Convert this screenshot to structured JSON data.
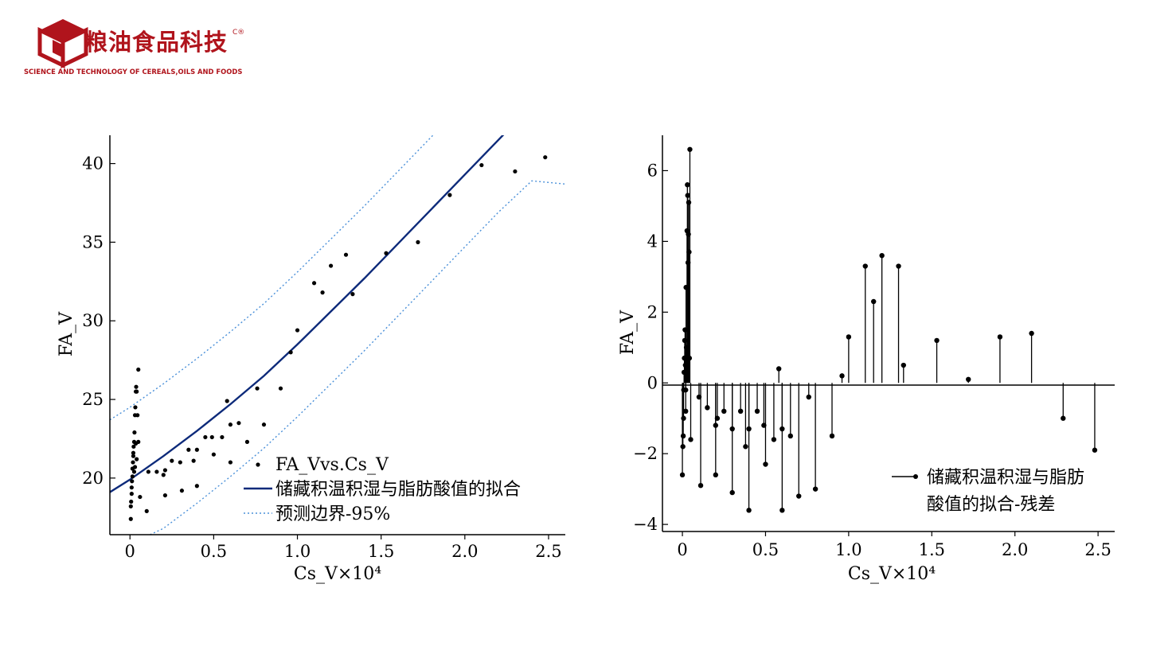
{
  "logo": {
    "title": "粮油食品科技",
    "mark": "C®",
    "subtitle": "SCIENCE AND TECHNOLOGY OF CEREALS,OILS AND FOODS",
    "colors": {
      "primary": "#b0141c"
    }
  },
  "chart_data": [
    {
      "type": "scatter",
      "title": "",
      "xlabel": "Cs_V×10⁴",
      "ylabel": "FA_V",
      "xlim": [
        -0.12,
        2.6
      ],
      "ylim": [
        16.4,
        41.8
      ],
      "xticks": [
        0,
        0.5,
        1.0,
        1.5,
        2.0,
        2.5
      ],
      "xtick_labels": [
        "0",
        "0.5",
        "1.0",
        "1.5",
        "2.0",
        "2.5"
      ],
      "yticks": [
        20,
        25,
        30,
        35,
        40
      ],
      "ytick_labels": [
        "20",
        "25",
        "30",
        "35",
        "40"
      ],
      "grid": false,
      "legend_position": "bottom-right",
      "colors": {
        "fit": "#0d2a7a",
        "bounds": "#4a90d9",
        "points": "#000000"
      },
      "series": [
        {
          "name": "FA_Vvs.Cs_V",
          "kind": "points",
          "points": [
            [
              0.005,
              17.4
            ],
            [
              0.005,
              18.2
            ],
            [
              0.007,
              18.5
            ],
            [
              0.01,
              19.0
            ],
            [
              0.01,
              19.4
            ],
            [
              0.012,
              19.8
            ],
            [
              0.015,
              20.1
            ],
            [
              0.015,
              20.6
            ],
            [
              0.018,
              21.0
            ],
            [
              0.02,
              21.4
            ],
            [
              0.02,
              21.6
            ],
            [
              0.022,
              22.0
            ],
            [
              0.025,
              22.3
            ],
            [
              0.027,
              22.9
            ],
            [
              0.03,
              24.0
            ],
            [
              0.032,
              24.5
            ],
            [
              0.035,
              25.5
            ],
            [
              0.037,
              25.8
            ],
            [
              0.04,
              25.5
            ],
            [
              0.045,
              24.0
            ],
            [
              0.05,
              26.9
            ],
            [
              0.035,
              22.2
            ],
            [
              0.04,
              21.2
            ],
            [
              0.03,
              20.7
            ],
            [
              0.025,
              20.4
            ],
            [
              0.06,
              18.8
            ],
            [
              0.05,
              22.3
            ],
            [
              0.1,
              17.9
            ],
            [
              0.11,
              20.4
            ],
            [
              0.16,
              20.4
            ],
            [
              0.2,
              20.2
            ],
            [
              0.21,
              18.9
            ],
            [
              0.21,
              20.5
            ],
            [
              0.25,
              21.1
            ],
            [
              0.3,
              21.0
            ],
            [
              0.31,
              19.2
            ],
            [
              0.35,
              21.8
            ],
            [
              0.38,
              21.1
            ],
            [
              0.4,
              19.5
            ],
            [
              0.4,
              21.8
            ],
            [
              0.45,
              22.6
            ],
            [
              0.49,
              22.6
            ],
            [
              0.5,
              21.5
            ],
            [
              0.55,
              22.6
            ],
            [
              0.58,
              24.9
            ],
            [
              0.6,
              23.4
            ],
            [
              0.6,
              21.0
            ],
            [
              0.65,
              23.5
            ],
            [
              0.7,
              22.3
            ],
            [
              0.76,
              25.7
            ],
            [
              0.8,
              23.4
            ],
            [
              0.9,
              25.7
            ],
            [
              0.96,
              28.0
            ],
            [
              1.0,
              29.4
            ],
            [
              1.1,
              32.4
            ],
            [
              1.15,
              31.8
            ],
            [
              1.2,
              33.5
            ],
            [
              1.29,
              34.2
            ],
            [
              1.33,
              31.7
            ],
            [
              1.53,
              34.3
            ],
            [
              1.72,
              35.0
            ],
            [
              1.91,
              38.0
            ],
            [
              2.1,
              39.9
            ],
            [
              2.3,
              39.5
            ],
            [
              2.48,
              40.4
            ]
          ]
        },
        {
          "name": "储藏积温积湿与脂肪酸值的拟合",
          "kind": "line",
          "x": [
            -0.12,
            0.0,
            0.2,
            0.4,
            0.6,
            0.8,
            1.0,
            1.2,
            1.4,
            1.6,
            1.8,
            2.0,
            2.2,
            2.3
          ],
          "y": [
            19.1,
            19.9,
            21.4,
            23.0,
            24.7,
            26.5,
            28.5,
            30.6,
            32.7,
            34.9,
            37.1,
            39.3,
            41.5,
            42.6
          ]
        },
        {
          "name": "预测边界-95%",
          "kind": "dotted",
          "x": [
            -0.12,
            0.0,
            0.2,
            0.4,
            0.6,
            0.8,
            1.0,
            1.2,
            1.4,
            1.6,
            1.8,
            1.92
          ],
          "y": [
            23.7,
            24.5,
            26.0,
            27.6,
            29.3,
            31.1,
            33.1,
            35.2,
            37.3,
            39.5,
            41.7,
            43.0
          ]
        },
        {
          "name": "",
          "kind": "dotted",
          "x": [
            0.12,
            0.2,
            0.4,
            0.6,
            0.8,
            1.0,
            1.2,
            1.4,
            1.6,
            1.8,
            2.0,
            2.2,
            2.4,
            2.6
          ],
          "y": [
            16.4,
            16.8,
            18.4,
            20.1,
            21.9,
            23.9,
            26.0,
            28.1,
            30.3,
            32.5,
            34.7,
            36.9,
            38.9,
            38.7
          ]
        }
      ]
    },
    {
      "type": "scatter",
      "title": "",
      "xlabel": "Cs_V×10⁴",
      "ylabel": "FA_V",
      "xlim": [
        -0.12,
        2.6
      ],
      "ylim": [
        -4.2,
        7.0
      ],
      "xticks": [
        0,
        0.5,
        1.0,
        1.5,
        2.0,
        2.5
      ],
      "xtick_labels": [
        "0",
        "0.5",
        "1.0",
        "1.5",
        "2.0",
        "2.5"
      ],
      "yticks": [
        -4,
        -2,
        0,
        2,
        4,
        6
      ],
      "ytick_labels": [
        "−4",
        "−2",
        "0",
        "2",
        "4",
        "6"
      ],
      "grid": false,
      "legend_position": "bottom-right",
      "series": [
        {
          "name": "储藏积温积湿与脂肪酸值的拟合-残差",
          "kind": "stem",
          "points": [
            [
              0.0,
              -2.6
            ],
            [
              0.003,
              -1.8
            ],
            [
              0.005,
              -1.5
            ],
            [
              0.007,
              -1.0
            ],
            [
              0.008,
              -0.2
            ],
            [
              0.01,
              0.3
            ],
            [
              0.012,
              0.7
            ],
            [
              0.014,
              1.2
            ],
            [
              0.016,
              1.5
            ],
            [
              0.018,
              0.5
            ],
            [
              0.02,
              -0.2
            ],
            [
              0.02,
              -0.8
            ],
            [
              0.022,
              2.7
            ],
            [
              0.024,
              1.0
            ],
            [
              0.026,
              0.2
            ],
            [
              0.028,
              4.3
            ],
            [
              0.03,
              5.6
            ],
            [
              0.032,
              5.3
            ],
            [
              0.034,
              3.4
            ],
            [
              0.036,
              4.2
            ],
            [
              0.038,
              5.1
            ],
            [
              0.04,
              3.7
            ],
            [
              0.042,
              0.7
            ],
            [
              0.045,
              6.6
            ],
            [
              0.05,
              -1.6
            ],
            [
              0.1,
              -0.4
            ],
            [
              0.11,
              -2.9
            ],
            [
              0.15,
              -0.7
            ],
            [
              0.2,
              -1.2
            ],
            [
              0.2,
              -2.6
            ],
            [
              0.21,
              -1.0
            ],
            [
              0.25,
              -0.8
            ],
            [
              0.3,
              -3.1
            ],
            [
              0.3,
              -1.3
            ],
            [
              0.35,
              -0.8
            ],
            [
              0.38,
              -1.8
            ],
            [
              0.4,
              -1.3
            ],
            [
              0.4,
              -3.6
            ],
            [
              0.45,
              -0.8
            ],
            [
              0.49,
              -1.2
            ],
            [
              0.5,
              -2.3
            ],
            [
              0.55,
              -1.6
            ],
            [
              0.58,
              0.4
            ],
            [
              0.6,
              -1.3
            ],
            [
              0.6,
              -3.6
            ],
            [
              0.65,
              -1.5
            ],
            [
              0.7,
              -3.2
            ],
            [
              0.76,
              -0.4
            ],
            [
              0.8,
              -3.0
            ],
            [
              0.9,
              -1.5
            ],
            [
              0.96,
              0.2
            ],
            [
              1.0,
              1.3
            ],
            [
              1.1,
              3.3
            ],
            [
              1.15,
              2.3
            ],
            [
              1.2,
              3.6
            ],
            [
              1.3,
              3.3
            ],
            [
              1.33,
              0.5
            ],
            [
              1.53,
              1.2
            ],
            [
              1.72,
              0.1
            ],
            [
              1.91,
              1.3
            ],
            [
              2.1,
              1.4
            ],
            [
              2.29,
              -1.0
            ],
            [
              2.48,
              -1.9
            ]
          ]
        }
      ]
    }
  ]
}
